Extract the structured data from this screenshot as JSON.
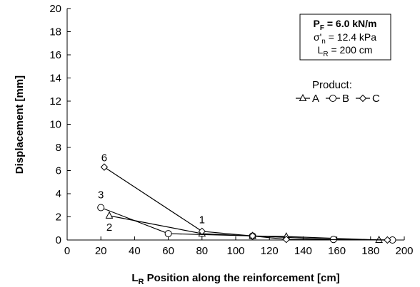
{
  "chart_data": {
    "type": "line",
    "xlabel": {
      "main": "L",
      "sub": "R",
      "rest": " Position along the reinforcement [cm]"
    },
    "ylabel": "Displacement  [mm]",
    "xlim": [
      0,
      200
    ],
    "ylim": [
      0,
      20
    ],
    "xticks": [
      0,
      20,
      40,
      60,
      80,
      100,
      120,
      140,
      160,
      180,
      200
    ],
    "yticks": [
      0,
      2,
      4,
      6,
      8,
      10,
      12,
      14,
      16,
      18,
      20
    ],
    "grid": false,
    "info_box": {
      "line1": {
        "main": "P",
        "sub": "F",
        "rest": " = 6.0 kN/m"
      },
      "line2": {
        "main": "σ'",
        "sub": "n",
        "rest": " = 12.4 kPa"
      },
      "line3": {
        "main": "L",
        "sub": "R",
        "rest": " = 200 cm"
      }
    },
    "legend": {
      "title": "Product:",
      "placement": "right"
    },
    "series": [
      {
        "name": "A",
        "marker": "triangle",
        "x": [
          25,
          80,
          110,
          130,
          185
        ],
        "y": [
          2.1,
          0.55,
          0.35,
          0.3,
          0.0
        ]
      },
      {
        "name": "B",
        "marker": "circle",
        "x": [
          20,
          60,
          110,
          158,
          193
        ],
        "y": [
          2.8,
          0.55,
          0.35,
          0.05,
          0.0
        ]
      },
      {
        "name": "C",
        "marker": "diamond",
        "x": [
          22,
          80,
          110,
          130,
          190
        ],
        "y": [
          6.3,
          0.75,
          0.35,
          0.05,
          0.0
        ]
      }
    ],
    "annotations": [
      {
        "text": "6",
        "x": 22,
        "y": 6.8
      },
      {
        "text": "3",
        "x": 20,
        "y": 3.6
      },
      {
        "text": "2",
        "x": 25,
        "y": 0.8
      },
      {
        "text": "1",
        "x": 80,
        "y": 1.45
      }
    ]
  }
}
